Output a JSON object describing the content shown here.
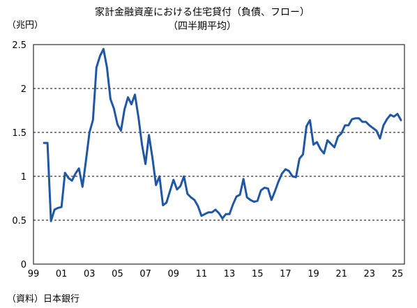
{
  "chart_data": {
    "type": "line",
    "title": "家計金融資産における住宅貸付（負債、フロー）",
    "subtitle": "（四半期平均）",
    "ylabel": "（兆円）",
    "source": "（資料）日本銀行",
    "ylim": [
      0,
      2.5
    ],
    "yticks": [
      "0",
      "0.5",
      "1",
      "1.5",
      "2",
      "2.5"
    ],
    "ytick_values": [
      0,
      0.5,
      1,
      1.5,
      2,
      2.5
    ],
    "xlim": [
      1999.0,
      2025.5
    ],
    "xticks": [
      "99",
      "01",
      "03",
      "05",
      "07",
      "09",
      "11",
      "13",
      "15",
      "17",
      "19",
      "21",
      "23",
      "25"
    ],
    "xtick_values": [
      1999,
      2001,
      2003,
      2005,
      2007,
      2009,
      2011,
      2013,
      2015,
      2017,
      2019,
      2021,
      2023,
      2025
    ],
    "grid": "horizontal-dashed",
    "series": [
      {
        "color": "#1f57a4",
        "x": [
          1999.75,
          2000.0,
          2000.25,
          2000.5,
          2000.75,
          2001.0,
          2001.25,
          2001.5,
          2001.75,
          2002.0,
          2002.25,
          2002.5,
          2002.75,
          2003.0,
          2003.25,
          2003.5,
          2003.75,
          2004.0,
          2004.25,
          2004.5,
          2004.75,
          2005.0,
          2005.25,
          2005.5,
          2005.75,
          2006.0,
          2006.25,
          2006.5,
          2006.75,
          2007.0,
          2007.25,
          2007.5,
          2007.75,
          2008.0,
          2008.25,
          2008.5,
          2008.75,
          2009.0,
          2009.25,
          2009.5,
          2009.75,
          2010.0,
          2010.25,
          2010.5,
          2010.75,
          2011.0,
          2011.25,
          2011.5,
          2011.75,
          2012.0,
          2012.25,
          2012.5,
          2012.75,
          2013.0,
          2013.25,
          2013.5,
          2013.75,
          2014.0,
          2014.25,
          2014.5,
          2014.75,
          2015.0,
          2015.25,
          2015.5,
          2015.75,
          2016.0,
          2016.25,
          2016.5,
          2016.75,
          2017.0,
          2017.25,
          2017.5,
          2017.75,
          2018.0,
          2018.25,
          2018.5,
          2018.75,
          2019.0,
          2019.25,
          2019.5,
          2019.75,
          2020.0,
          2020.25,
          2020.5,
          2020.75,
          2021.0,
          2021.25,
          2021.5,
          2021.75,
          2022.0,
          2022.25,
          2022.5,
          2022.75,
          2023.0,
          2023.25,
          2023.5,
          2023.75,
          2024.0,
          2024.25,
          2024.5,
          2024.75,
          2025.0,
          2025.25
        ],
        "values": [
          1.38,
          1.38,
          0.49,
          0.62,
          0.64,
          0.65,
          1.04,
          0.98,
          0.95,
          1.03,
          1.09,
          0.88,
          1.18,
          1.5,
          1.64,
          2.24,
          2.37,
          2.45,
          2.24,
          1.88,
          1.77,
          1.59,
          1.52,
          1.76,
          1.9,
          1.82,
          1.93,
          1.67,
          1.36,
          1.14,
          1.47,
          1.21,
          0.9,
          1.0,
          0.67,
          0.7,
          0.83,
          0.96,
          0.85,
          0.89,
          1.0,
          0.8,
          0.76,
          0.73,
          0.66,
          0.55,
          0.57,
          0.59,
          0.59,
          0.62,
          0.58,
          0.52,
          0.57,
          0.57,
          0.68,
          0.77,
          0.79,
          0.97,
          0.76,
          0.73,
          0.71,
          0.72,
          0.84,
          0.87,
          0.86,
          0.73,
          0.83,
          0.94,
          1.03,
          1.08,
          1.06,
          1.0,
          0.99,
          1.2,
          1.25,
          1.57,
          1.64,
          1.36,
          1.39,
          1.31,
          1.26,
          1.41,
          1.37,
          1.33,
          1.45,
          1.49,
          1.58,
          1.58,
          1.65,
          1.66,
          1.66,
          1.62,
          1.62,
          1.58,
          1.55,
          1.52,
          1.43,
          1.58,
          1.65,
          1.7,
          1.68,
          1.71,
          1.64
        ]
      }
    ]
  }
}
